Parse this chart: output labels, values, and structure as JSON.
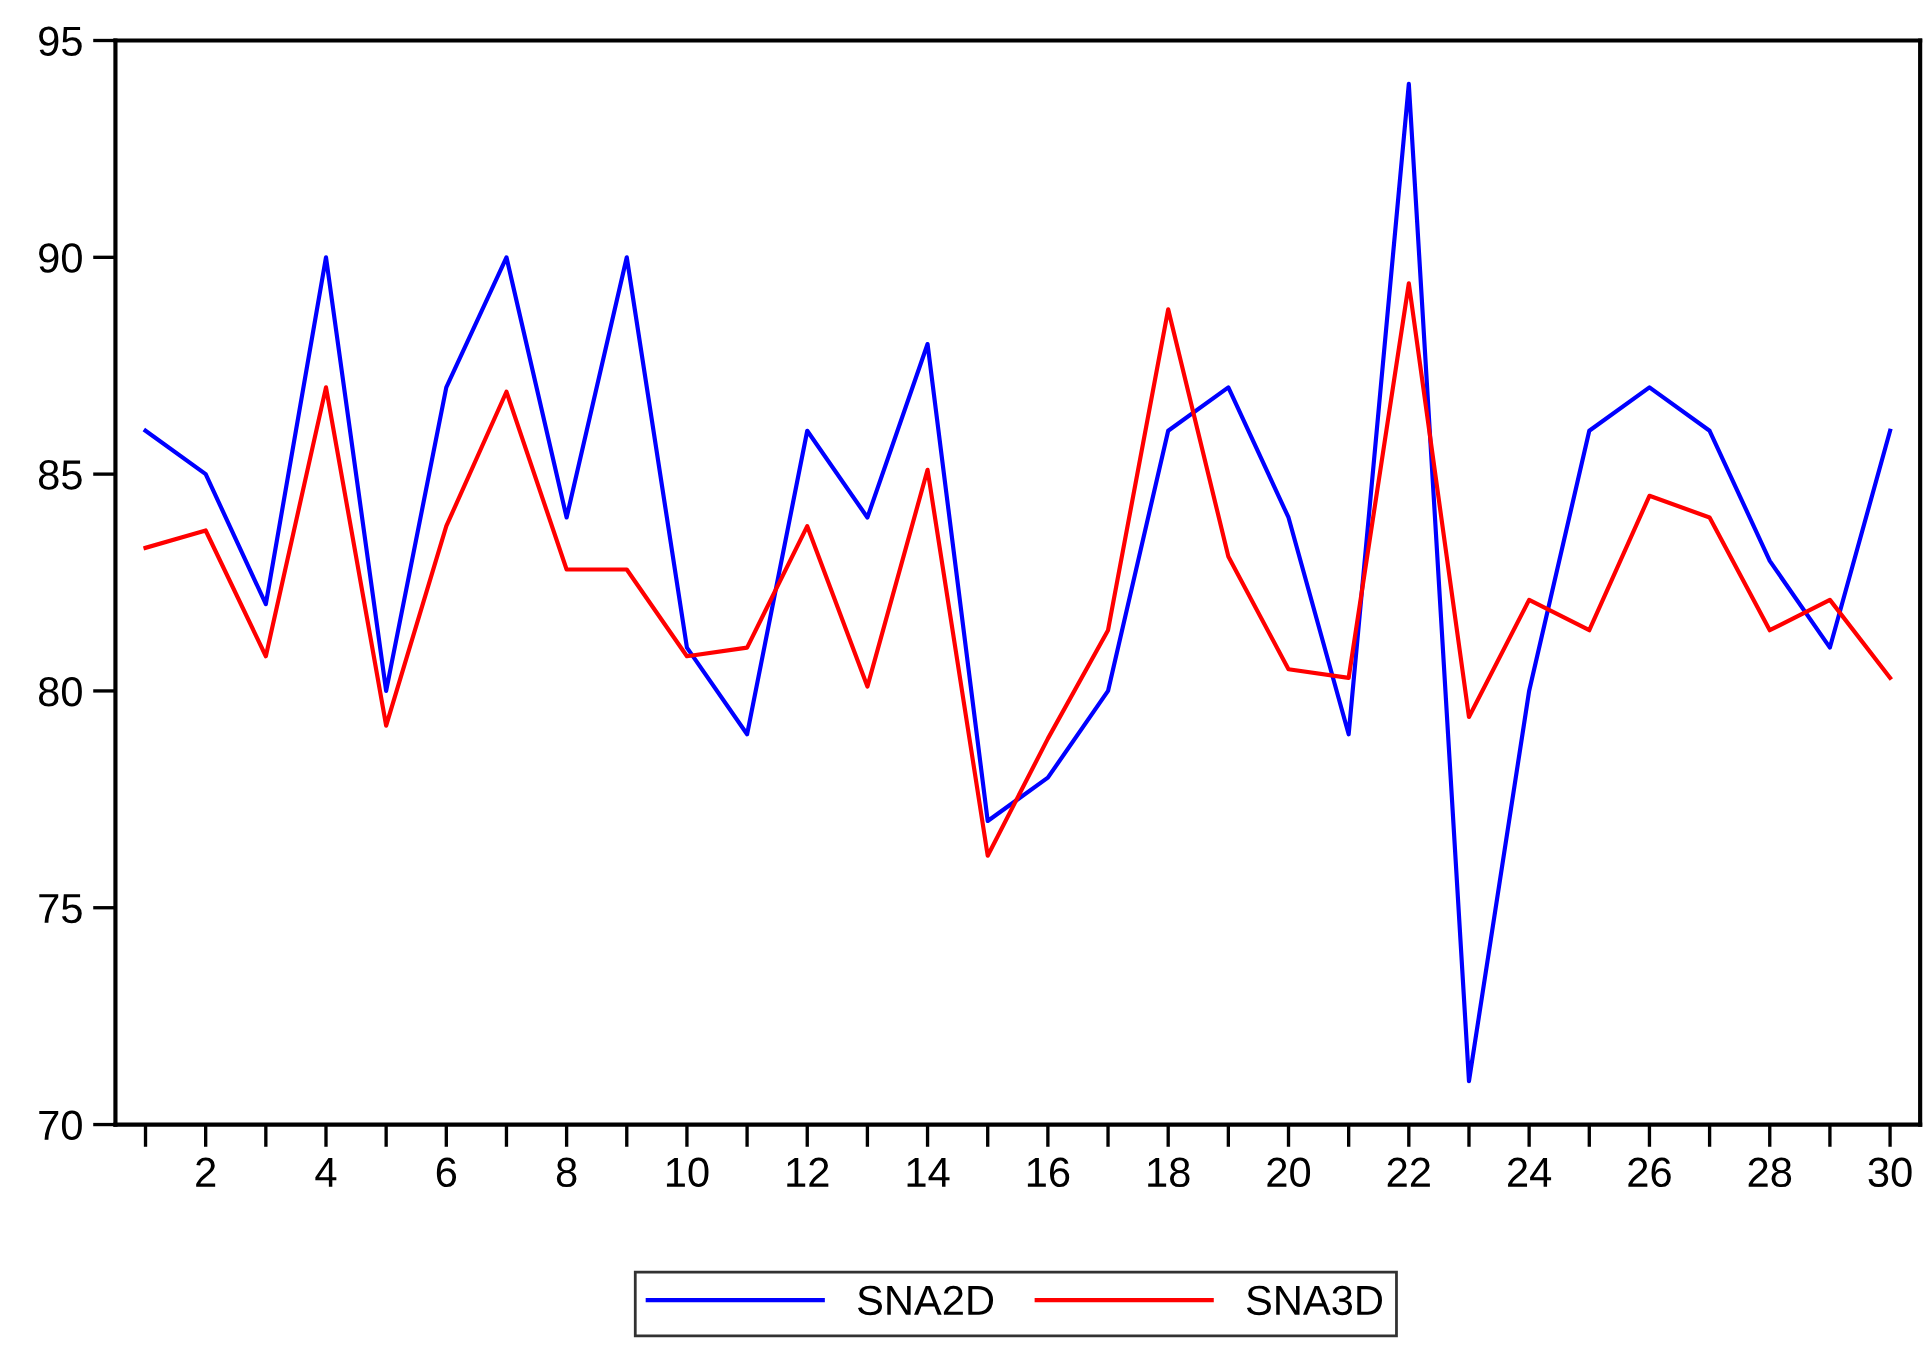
{
  "chart_data": {
    "type": "line",
    "x": [
      1,
      2,
      3,
      4,
      5,
      6,
      7,
      8,
      9,
      10,
      11,
      12,
      13,
      14,
      15,
      16,
      17,
      18,
      19,
      20,
      21,
      22,
      23,
      24,
      25,
      26,
      27,
      28,
      29,
      30
    ],
    "series": [
      {
        "name": "SNA2D",
        "color": "#0000ff",
        "values": [
          86,
          85,
          82,
          90,
          80,
          87,
          90,
          84,
          90,
          81,
          79,
          86,
          84,
          88,
          77,
          78,
          80,
          86,
          87,
          84,
          79,
          94,
          71,
          80,
          86,
          87,
          86,
          83,
          81,
          86
        ]
      },
      {
        "name": "SNA3D",
        "color": "#ff0000",
        "values": [
          83.3,
          83.7,
          80.8,
          87.0,
          79.2,
          83.8,
          86.9,
          82.8,
          82.8,
          80.8,
          81.0,
          83.8,
          80.1,
          85.1,
          76.2,
          78.9,
          81.4,
          88.8,
          83.1,
          80.5,
          80.3,
          89.4,
          79.4,
          82.1,
          81.4,
          84.5,
          84.0,
          81.4,
          82.1,
          80.3
        ]
      }
    ],
    "xlim": [
      0.5,
      30.5
    ],
    "xticks": [
      {
        "value": 1,
        "label": null
      },
      2,
      {
        "value": 3,
        "label": null
      },
      4,
      {
        "value": 5,
        "label": null
      },
      6,
      {
        "value": 7,
        "label": null
      },
      8,
      {
        "value": 9,
        "label": null
      },
      10,
      {
        "value": 11,
        "label": null
      },
      12,
      {
        "value": 13,
        "label": null
      },
      14,
      {
        "value": 15,
        "label": null
      },
      16,
      {
        "value": 17,
        "label": null
      },
      18,
      {
        "value": 19,
        "label": null
      },
      20,
      {
        "value": 21,
        "label": null
      },
      22,
      {
        "value": 23,
        "label": null
      },
      24,
      {
        "value": 25,
        "label": null
      },
      26,
      {
        "value": 27,
        "label": null
      },
      28,
      {
        "value": 29,
        "label": null
      },
      30
    ],
    "ylim": [
      70,
      95
    ],
    "yticks": [
      70,
      75,
      80,
      85,
      90,
      95
    ],
    "grid": false,
    "legend": "bottom",
    "marker": "none",
    "line_style": "solid"
  }
}
